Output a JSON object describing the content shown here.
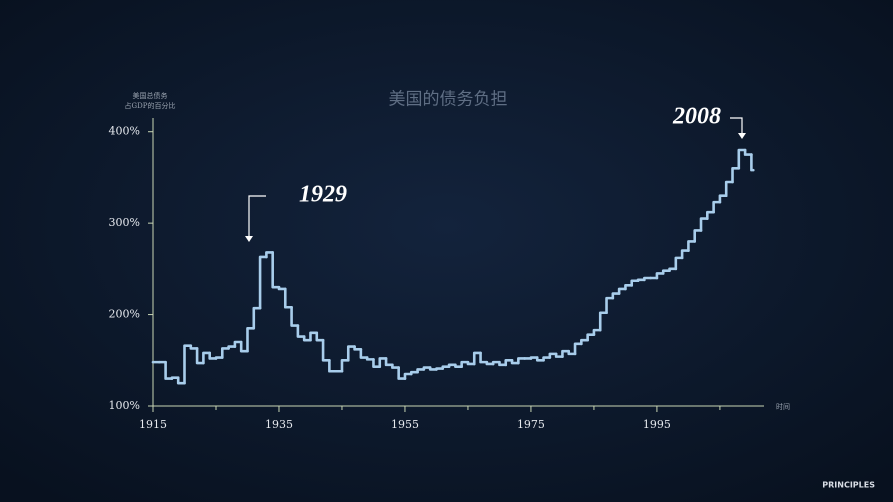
{
  "chart_data": {
    "type": "line",
    "step": true,
    "title": "美国的债务负担",
    "y_label": [
      "美国总债务",
      "占GDP的百分比"
    ],
    "x_label": "时间",
    "annotations": [
      "1929",
      "2008"
    ],
    "brand": "PRINCIPLES",
    "color": "#a8cdeb",
    "axis_color": "#c9d6b4",
    "xlim": [
      1915,
      2012
    ],
    "xticks": [
      1915,
      1935,
      1955,
      1975,
      1995
    ],
    "xminorticks": [
      1925,
      1945,
      1965,
      1985,
      2005
    ],
    "ylim": [
      100,
      415
    ],
    "yticks": [
      {
        "value": 100,
        "label": "100%"
      },
      {
        "value": 200,
        "label": "200%"
      },
      {
        "value": 300,
        "label": "300%"
      },
      {
        "value": 400,
        "label": "400%"
      }
    ],
    "x": [
      1915,
      1916,
      1917,
      1918,
      1919,
      1920,
      1921,
      1922,
      1923,
      1924,
      1925,
      1926,
      1927,
      1928,
      1929,
      1930,
      1931,
      1932,
      1933,
      1934,
      1935,
      1936,
      1937,
      1938,
      1939,
      1940,
      1941,
      1942,
      1943,
      1944,
      1945,
      1946,
      1947,
      1948,
      1949,
      1950,
      1951,
      1952,
      1953,
      1954,
      1955,
      1956,
      1957,
      1958,
      1959,
      1960,
      1961,
      1962,
      1963,
      1964,
      1965,
      1966,
      1967,
      1968,
      1969,
      1970,
      1971,
      1972,
      1973,
      1974,
      1975,
      1976,
      1977,
      1978,
      1979,
      1980,
      1981,
      1982,
      1983,
      1984,
      1985,
      1986,
      1987,
      1988,
      1989,
      1990,
      1991,
      1992,
      1993,
      1994,
      1995,
      1996,
      1997,
      1998,
      1999,
      2000,
      2001,
      2002,
      2003,
      2004,
      2005,
      2006,
      2007,
      2008,
      2009,
      2010
    ],
    "values": [
      148,
      148,
      130,
      131,
      125,
      166,
      163,
      147,
      158,
      152,
      153,
      163,
      165,
      170,
      160,
      185,
      207,
      263,
      268,
      230,
      228,
      208,
      188,
      176,
      172,
      180,
      172,
      150,
      138,
      138,
      150,
      165,
      162,
      153,
      151,
      143,
      152,
      145,
      142,
      130,
      135,
      137,
      140,
      142,
      140,
      141,
      143,
      145,
      143,
      148,
      146,
      158,
      148,
      146,
      148,
      145,
      150,
      147,
      152,
      152,
      153,
      150,
      153,
      157,
      154,
      160,
      157,
      168,
      172,
      178,
      183,
      202,
      218,
      223,
      228,
      232,
      237,
      238,
      240,
      240,
      245,
      248,
      250,
      262,
      270,
      280,
      292,
      305,
      312,
      323,
      330,
      345,
      360,
      380,
      375,
      358
    ]
  }
}
